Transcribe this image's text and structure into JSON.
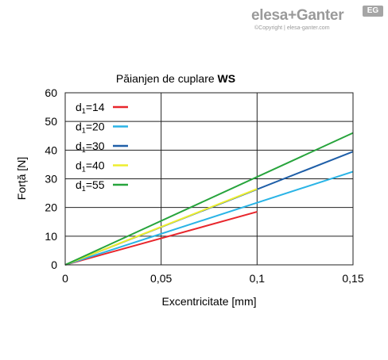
{
  "logo": {
    "brand": "elesa+Ganter",
    "badge": "EG",
    "copyright": "©Copyright | elesa-ganter.com"
  },
  "chart_data": {
    "type": "line",
    "title": "Păianjen de cuplare WS",
    "title_plain": "Păianjen de cuplare ",
    "title_bold": "WS",
    "xlabel": "Excentricitate [mm]",
    "ylabel": "Forță [N]",
    "xlim": [
      0,
      0.15
    ],
    "ylim": [
      0,
      60
    ],
    "xticks": [
      0,
      0.05,
      0.1,
      0.15
    ],
    "xtick_labels": [
      "0",
      "0,05",
      "0,1",
      "0,15"
    ],
    "yticks": [
      0,
      10,
      20,
      30,
      40,
      50,
      60
    ],
    "ytick_labels": [
      "0",
      "10",
      "20",
      "30",
      "40",
      "50",
      "60"
    ],
    "grid": true,
    "legend_position": "top-left",
    "series": [
      {
        "name": "d1=14",
        "label_main": "d",
        "label_sub": "1",
        "label_rest": "=14",
        "color": "#e8262c",
        "x": [
          0,
          0.1
        ],
        "y": [
          0,
          18.5
        ]
      },
      {
        "name": "d1=20",
        "label_main": "d",
        "label_sub": "1",
        "label_rest": "=20",
        "color": "#2ab4e6",
        "x": [
          0,
          0.15
        ],
        "y": [
          0,
          32.5
        ]
      },
      {
        "name": "d1=30",
        "label_main": "d",
        "label_sub": "1",
        "label_rest": "=30",
        "color": "#1f5fa8",
        "x": [
          0,
          0.15
        ],
        "y": [
          0,
          39.5
        ]
      },
      {
        "name": "d1=40",
        "label_main": "d",
        "label_sub": "1",
        "label_rest": "=40",
        "color": "#eeee2e",
        "x": [
          0,
          0.1
        ],
        "y": [
          0,
          26.5
        ]
      },
      {
        "name": "d1=55",
        "label_main": "d",
        "label_sub": "1",
        "label_rest": "=55",
        "color": "#27a43c",
        "x": [
          0,
          0.15
        ],
        "y": [
          0,
          46
        ]
      }
    ]
  }
}
